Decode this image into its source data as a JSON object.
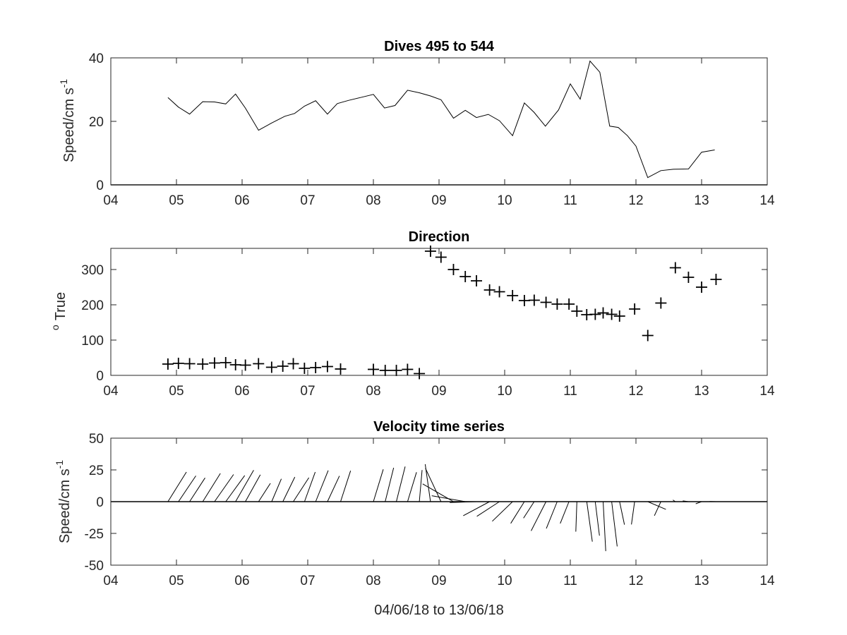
{
  "chart_data": [
    {
      "type": "line",
      "title": "Dives 495 to 544",
      "xlabel": "",
      "ylabel": "Speed/cm s",
      "ylabel_superscript": "-1",
      "xlim": [
        4,
        14
      ],
      "ylim": [
        0,
        40
      ],
      "xticks": [
        4,
        5,
        6,
        7,
        8,
        9,
        10,
        11,
        12,
        13,
        14
      ],
      "xtick_labels": [
        "04",
        "05",
        "06",
        "07",
        "08",
        "09",
        "10",
        "11",
        "12",
        "13",
        "14"
      ],
      "yticks": [
        0,
        20,
        40
      ],
      "ytick_labels": [
        "0",
        "20",
        "40"
      ],
      "zero_line": true,
      "series": [
        {
          "x": [
            4.87,
            5.03,
            5.2,
            5.4,
            5.58,
            5.75,
            5.9,
            6.05,
            6.25,
            6.45,
            6.65,
            6.8,
            6.95,
            7.12,
            7.3,
            7.45,
            7.62,
            7.8,
            8.0,
            8.17,
            8.33,
            8.52,
            8.7,
            8.87,
            9.03,
            9.22,
            9.4,
            9.57,
            9.75,
            9.92,
            10.12,
            10.3,
            10.45,
            10.62,
            10.82,
            11.0,
            11.15,
            11.3,
            11.45,
            11.6,
            11.73,
            11.87,
            12.0,
            12.18,
            12.38,
            12.57,
            12.8,
            13.0,
            13.2
          ],
          "y": [
            27.5,
            24.5,
            22.3,
            26.2,
            26.1,
            25.5,
            28.6,
            24.2,
            17.2,
            19.5,
            21.6,
            22.5,
            24.8,
            26.5,
            22.3,
            25.6,
            26.6,
            27.5,
            28.5,
            24.2,
            25.0,
            29.8,
            29.0,
            28.0,
            26.8,
            21.0,
            23.5,
            21.2,
            22.2,
            20.2,
            15.5,
            25.8,
            22.8,
            18.5,
            23.6,
            31.8,
            27.0,
            39.0,
            35.5,
            18.5,
            18.1,
            15.5,
            12.2,
            2.3,
            4.5,
            4.9,
            5.0,
            10.3,
            11.0
          ]
        }
      ]
    },
    {
      "type": "scatter",
      "title": "Direction",
      "xlabel": "",
      "ylabel": "True",
      "ylabel_superscript": "o",
      "xlim": [
        4,
        14
      ],
      "ylim": [
        0,
        360
      ],
      "xticks": [
        4,
        5,
        6,
        7,
        8,
        9,
        10,
        11,
        12,
        13,
        14
      ],
      "xtick_labels": [
        "04",
        "05",
        "06",
        "07",
        "08",
        "09",
        "10",
        "11",
        "12",
        "13",
        "14"
      ],
      "yticks": [
        0,
        100,
        200,
        300
      ],
      "ytick_labels": [
        "0",
        "100",
        "200",
        "300"
      ],
      "marker": "+",
      "series": [
        {
          "x": [
            4.87,
            5.03,
            5.2,
            5.4,
            5.58,
            5.75,
            5.9,
            6.05,
            6.25,
            6.45,
            6.62,
            6.78,
            6.95,
            7.12,
            7.3,
            7.5,
            8.0,
            8.18,
            8.35,
            8.52,
            8.7,
            8.87,
            9.03,
            9.22,
            9.4,
            9.57,
            9.77,
            9.92,
            10.12,
            10.3,
            10.45,
            10.63,
            10.8,
            10.98,
            11.1,
            11.25,
            11.38,
            11.5,
            11.63,
            11.75,
            11.98,
            12.18,
            12.38,
            12.6,
            12.8,
            13.0,
            13.22
          ],
          "y": [
            32,
            34,
            33,
            32,
            35,
            36,
            30,
            29,
            33,
            23,
            26,
            33,
            20,
            22,
            25,
            18,
            17,
            14,
            14,
            17,
            5,
            352,
            335,
            300,
            280,
            268,
            242,
            237,
            226,
            212,
            213,
            207,
            202,
            202,
            182,
            172,
            173,
            177,
            173,
            168,
            188,
            113,
            205,
            305,
            278,
            250,
            272
          ]
        }
      ]
    },
    {
      "type": "line",
      "subtype": "stick-vector",
      "title": "Velocity time series",
      "xlabel": "04/06/18 to 13/06/18",
      "ylabel": "Speed/cm s",
      "ylabel_superscript": "-1",
      "xlim": [
        4,
        14
      ],
      "ylim": [
        -50,
        50
      ],
      "xticks": [
        4,
        5,
        6,
        7,
        8,
        9,
        10,
        11,
        12,
        13,
        14
      ],
      "xtick_labels": [
        "04",
        "05",
        "06",
        "07",
        "08",
        "09",
        "10",
        "11",
        "12",
        "13",
        "14"
      ],
      "yticks": [
        -50,
        -25,
        0,
        25,
        50
      ],
      "ytick_labels": [
        "-50",
        "-25",
        "0",
        "25",
        "50"
      ],
      "zero_line": true,
      "sticks": {
        "x": [
          4.87,
          5.03,
          5.2,
          5.4,
          5.58,
          5.75,
          5.9,
          6.05,
          6.25,
          6.45,
          6.62,
          6.78,
          6.95,
          7.12,
          7.3,
          7.5,
          8.0,
          8.18,
          8.35,
          8.52,
          8.7,
          8.87,
          9.03,
          9.22,
          9.4,
          9.57,
          9.77,
          9.92,
          10.12,
          10.3,
          10.45,
          10.63,
          10.8,
          10.98,
          11.1,
          11.25,
          11.38,
          11.5,
          11.63,
          11.75,
          11.98,
          12.18,
          12.38,
          12.6,
          12.8,
          13.0,
          13.22
        ],
        "speed": [
          27.5,
          24.5,
          22.3,
          26.2,
          26.1,
          25.5,
          28.6,
          24.2,
          17.2,
          19.5,
          21.6,
          22.5,
          24.8,
          26.5,
          22.3,
          25.6,
          26.6,
          27.5,
          28.5,
          24.2,
          25.0,
          29.8,
          29.0,
          28.0,
          26.8,
          21.0,
          23.5,
          21.2,
          22.2,
          20.2,
          15.5,
          25.8,
          22.8,
          18.5,
          23.6,
          31.8,
          27.0,
          39.0,
          35.5,
          18.5,
          18.1,
          15.5,
          12.2,
          2.3,
          4.5,
          4.9,
          5.0
        ],
        "direction": [
          32,
          34,
          33,
          32,
          35,
          36,
          30,
          29,
          33,
          23,
          26,
          33,
          20,
          22,
          25,
          18,
          17,
          14,
          14,
          17,
          5,
          352,
          335,
          300,
          280,
          268,
          242,
          237,
          226,
          212,
          213,
          207,
          202,
          202,
          182,
          172,
          173,
          177,
          173,
          168,
          188,
          113,
          205,
          305,
          278,
          250,
          272
        ]
      }
    }
  ]
}
